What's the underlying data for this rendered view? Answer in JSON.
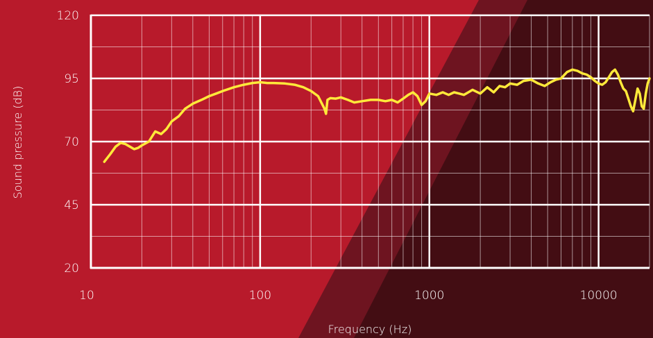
{
  "chart_data": {
    "type": "line",
    "xlabel": "Frequency (Hz)",
    "ylabel": "Sound pressure (dB)",
    "x_scale": "log",
    "xlim": [
      10,
      20000
    ],
    "ylim": [
      20,
      120
    ],
    "x_ticks": [
      10,
      100,
      1000,
      10000
    ],
    "x_tick_labels": [
      "10",
      "100",
      "1000",
      "10000"
    ],
    "y_ticks": [
      20,
      45,
      70,
      95,
      120
    ],
    "y_tick_labels": [
      "20",
      "45",
      "70",
      "95",
      "120"
    ],
    "grid": true,
    "series": [
      {
        "color": "#ffe93a",
        "x": [
          12,
          13,
          14,
          15,
          16,
          17,
          18,
          19,
          20,
          22,
          24,
          26,
          28,
          30,
          33,
          36,
          40,
          45,
          50,
          55,
          60,
          70,
          80,
          90,
          100,
          110,
          120,
          140,
          160,
          180,
          200,
          220,
          240,
          245,
          250,
          260,
          280,
          300,
          330,
          360,
          400,
          450,
          500,
          550,
          600,
          650,
          700,
          750,
          800,
          850,
          900,
          950,
          1000,
          1100,
          1200,
          1300,
          1400,
          1500,
          1600,
          1700,
          1800,
          2000,
          2200,
          2400,
          2600,
          2800,
          3000,
          3300,
          3600,
          4000,
          4400,
          4800,
          5200,
          5600,
          6000,
          6500,
          7000,
          7500,
          8000,
          8500,
          9000,
          9500,
          10000,
          10500,
          11000,
          11500,
          12000,
          12500,
          13000,
          13500,
          14000,
          14500,
          15000,
          15500,
          16000,
          16500,
          17000,
          17500,
          18000,
          18500,
          19000,
          19500,
          20000
        ],
        "y": [
          62,
          65,
          68,
          69.5,
          69,
          68,
          67,
          67.5,
          68.5,
          70,
          74,
          73,
          75,
          78,
          80,
          83,
          85,
          86.5,
          88,
          89,
          90,
          91.5,
          92.5,
          93.2,
          93.5,
          93.2,
          93.2,
          93,
          92.5,
          91.5,
          90,
          88,
          83,
          81,
          86.5,
          87.2,
          87,
          87.5,
          86.5,
          85.5,
          86,
          86.5,
          86.5,
          86,
          86.5,
          85.5,
          87,
          88.5,
          89.5,
          88,
          84.5,
          86,
          89,
          88.5,
          89.5,
          88.5,
          89.5,
          89,
          88.5,
          89.5,
          90.5,
          89,
          91.5,
          89.5,
          92,
          91.5,
          93,
          92.5,
          94,
          94.5,
          93,
          92,
          93.5,
          94.5,
          95,
          97.5,
          98.5,
          98,
          97,
          96.5,
          95.5,
          94,
          93,
          92.5,
          93.5,
          95.5,
          97.5,
          98.5,
          96.5,
          93.5,
          91,
          90,
          87,
          84,
          82,
          86.5,
          91,
          89,
          84,
          83,
          89,
          93,
          95
        ]
      }
    ]
  }
}
